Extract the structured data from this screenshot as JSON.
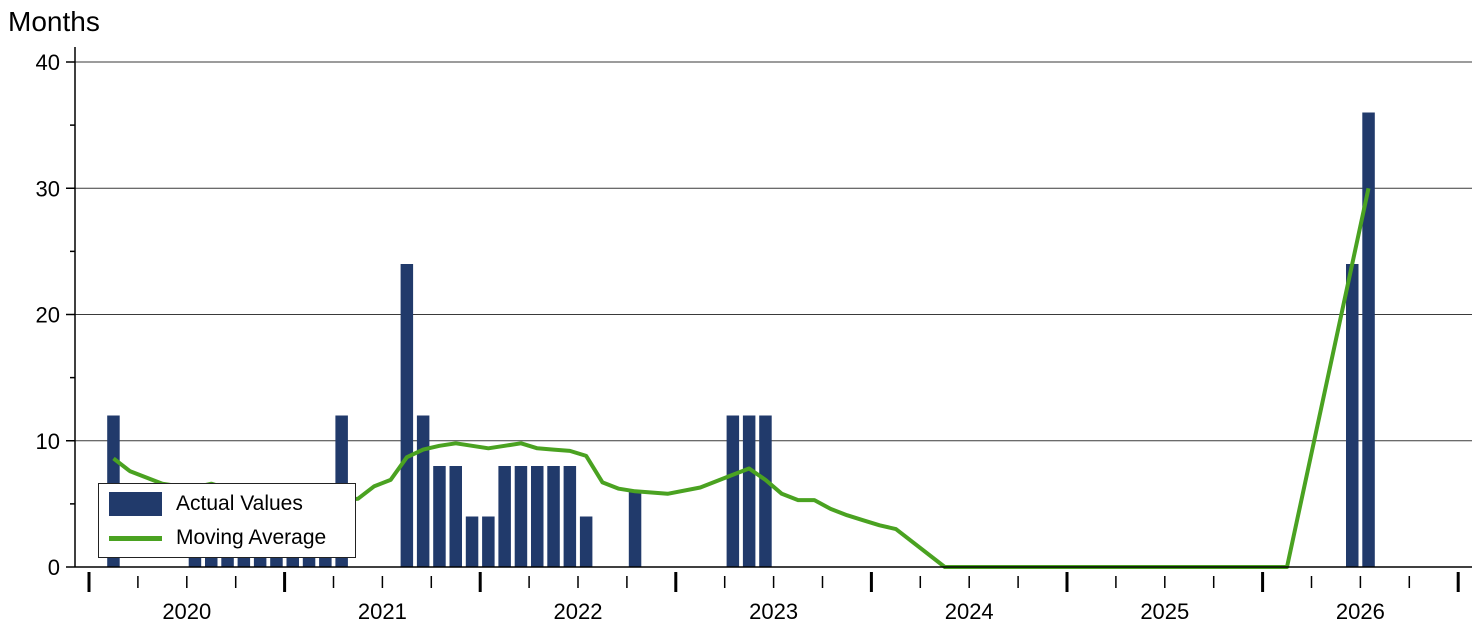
{
  "chart_data": {
    "type": "bar",
    "unit_label": "Months",
    "ylim": [
      0,
      40
    ],
    "yticks": [
      0,
      10,
      20,
      30,
      40
    ],
    "y_minor_ticks": [
      5,
      15,
      25,
      35
    ],
    "grid": true,
    "legend_position": "bottom-left",
    "year_labels": [
      "2020",
      "2021",
      "2022",
      "2023",
      "2024",
      "2025",
      "2026"
    ],
    "x_start": "2019-10",
    "x_end": "2026-09",
    "series": [
      {
        "name": "Actual Values",
        "type": "bar",
        "color": "#213a6b",
        "x": [
          "2019-11",
          "2020-04",
          "2020-05",
          "2020-06",
          "2020-07",
          "2020-08",
          "2020-09",
          "2020-10",
          "2020-11",
          "2020-12",
          "2021-01",
          "2021-05",
          "2021-06",
          "2021-07",
          "2021-08",
          "2021-09",
          "2021-10",
          "2021-11",
          "2021-12",
          "2022-01",
          "2022-02",
          "2022-03",
          "2022-04",
          "2022-07",
          "2023-01",
          "2023-02",
          "2023-03",
          "2026-03",
          "2026-04"
        ],
        "values": [
          12,
          2,
          2,
          2,
          2,
          2,
          2,
          2,
          2,
          2,
          12,
          24,
          12,
          8,
          8,
          4,
          4,
          8,
          8,
          8,
          8,
          8,
          4,
          6,
          12,
          12,
          12,
          24,
          36
        ]
      },
      {
        "name": "Moving Average",
        "type": "line",
        "color": "#4aa221",
        "x": [
          "2019-11",
          "2019-12",
          "2020-02",
          "2020-03",
          "2020-04",
          "2020-05",
          "2020-06",
          "2020-07",
          "2020-08",
          "2020-09",
          "2020-10",
          "2020-11",
          "2020-12",
          "2021-01",
          "2021-02",
          "2021-03",
          "2021-04",
          "2021-05",
          "2021-06",
          "2021-07",
          "2021-08",
          "2021-09",
          "2021-10",
          "2021-11",
          "2021-12",
          "2022-01",
          "2022-02",
          "2022-03",
          "2022-04",
          "2022-05",
          "2022-06",
          "2022-07",
          "2022-09",
          "2022-11",
          "2022-12",
          "2023-01",
          "2023-02",
          "2023-03",
          "2023-04",
          "2023-05",
          "2023-06",
          "2023-07",
          "2023-08",
          "2023-09",
          "2023-10",
          "2023-11",
          "2024-02",
          "2025-11",
          "2026-04"
        ],
        "values": [
          8.6,
          7.6,
          6.6,
          6.4,
          6.3,
          6.6,
          6.2,
          5.9,
          5.6,
          5.5,
          5.4,
          5.3,
          5.2,
          5.3,
          5.4,
          6.4,
          6.9,
          8.7,
          9.3,
          9.6,
          9.8,
          9.6,
          9.4,
          9.6,
          9.8,
          9.4,
          9.3,
          9.2,
          8.8,
          6.7,
          6.2,
          6.0,
          5.8,
          6.3,
          6.8,
          7.3,
          7.8,
          6.9,
          5.8,
          5.3,
          5.3,
          4.6,
          4.1,
          3.7,
          3.3,
          3.0,
          0,
          0,
          30
        ]
      }
    ]
  }
}
